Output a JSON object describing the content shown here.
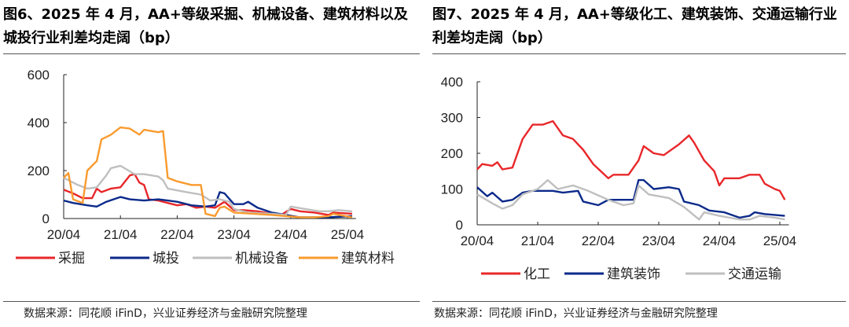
{
  "left": {
    "title": "图6、2025 年 4 月，AA+等级采掘、机械设备、建筑材料以及城投行业利差均走阔（bp）",
    "source": "数据来源：同花顺 iFinD，兴业证券经济与金融研究院整理"
  },
  "right": {
    "title": "图7、2025 年 4 月，AA+等级化工、建筑装饰、交通运输行业利差均走阔（bp）",
    "source": "数据来源：同花顺 iFinD，兴业证券经济与金融研究院整理"
  },
  "chart_data": [
    {
      "type": "line",
      "title": "图6、2025 年 4 月，AA+等级采掘、机械设备、建筑材料以及城投行业利差均走阔（bp）",
      "ylim": [
        0,
        600
      ],
      "yticks": [
        "0",
        "200",
        "400",
        "600"
      ],
      "xticks": [
        "20/04",
        "21/04",
        "22/04",
        "23/04",
        "24/04",
        "25/04"
      ],
      "legend": "bottom",
      "grid": false,
      "series": [
        {
          "name": "采掘",
          "color": "#e8272a",
          "points": [
            [
              "2020-04",
              120
            ],
            [
              "2020-06",
              105
            ],
            [
              "2020-08",
              85
            ],
            [
              "2020-10",
              85
            ],
            [
              "2020-11",
              125
            ],
            [
              "2020-12",
              110
            ],
            [
              "2021-02",
              125
            ],
            [
              "2021-04",
              130
            ],
            [
              "2021-06",
              180
            ],
            [
              "2021-07",
              185
            ],
            [
              "2021-08",
              150
            ],
            [
              "2021-09",
              140
            ],
            [
              "2021-10",
              80
            ],
            [
              "2021-12",
              75
            ],
            [
              "2022-02",
              65
            ],
            [
              "2022-04",
              55
            ],
            [
              "2022-06",
              60
            ],
            [
              "2022-08",
              45
            ],
            [
              "2022-10",
              50
            ],
            [
              "2022-12",
              45
            ],
            [
              "2023-02",
              70
            ],
            [
              "2023-04",
              35
            ],
            [
              "2023-06",
              35
            ],
            [
              "2023-09",
              30
            ],
            [
              "2023-12",
              20
            ],
            [
              "2024-02",
              15
            ],
            [
              "2024-04",
              40
            ],
            [
              "2024-06",
              30
            ],
            [
              "2024-09",
              25
            ],
            [
              "2024-12",
              15
            ],
            [
              "2025-01",
              25
            ],
            [
              "2025-05",
              20
            ]
          ]
        },
        {
          "name": "城投",
          "color": "#0b2a8a",
          "points": [
            [
              "2020-04",
              75
            ],
            [
              "2020-06",
              65
            ],
            [
              "2020-09",
              55
            ],
            [
              "2020-11",
              50
            ],
            [
              "2021-01",
              70
            ],
            [
              "2021-04",
              90
            ],
            [
              "2021-06",
              80
            ],
            [
              "2021-09",
              75
            ],
            [
              "2021-12",
              80
            ],
            [
              "2022-02",
              75
            ],
            [
              "2022-04",
              70
            ],
            [
              "2022-07",
              55
            ],
            [
              "2022-10",
              50
            ],
            [
              "2022-12",
              55
            ],
            [
              "2023-01",
              110
            ],
            [
              "2023-02",
              105
            ],
            [
              "2023-04",
              60
            ],
            [
              "2023-06",
              60
            ],
            [
              "2023-07",
              70
            ],
            [
              "2023-09",
              45
            ],
            [
              "2023-12",
              25
            ],
            [
              "2024-03",
              15
            ],
            [
              "2024-06",
              5
            ],
            [
              "2024-09",
              5
            ],
            [
              "2024-12",
              5
            ],
            [
              "2025-05",
              10
            ]
          ]
        },
        {
          "name": "机械设备",
          "color": "#bfbfbf",
          "points": [
            [
              "2020-04",
              170
            ],
            [
              "2020-07",
              140
            ],
            [
              "2020-09",
              125
            ],
            [
              "2020-11",
              130
            ],
            [
              "2021-01",
              180
            ],
            [
              "2021-02",
              210
            ],
            [
              "2021-04",
              220
            ],
            [
              "2021-07",
              185
            ],
            [
              "2021-09",
              185
            ],
            [
              "2021-12",
              175
            ],
            [
              "2022-01",
              160
            ],
            [
              "2022-02",
              125
            ],
            [
              "2022-06",
              110
            ],
            [
              "2022-09",
              100
            ],
            [
              "2022-11",
              75
            ],
            [
              "2023-01",
              80
            ],
            [
              "2023-03",
              70
            ],
            [
              "2023-04",
              40
            ],
            [
              "2023-07",
              25
            ],
            [
              "2023-12",
              20
            ],
            [
              "2024-03",
              15
            ],
            [
              "2024-04",
              50
            ],
            [
              "2024-07",
              40
            ],
            [
              "2024-10",
              30
            ],
            [
              "2024-12",
              30
            ],
            [
              "2025-02",
              35
            ],
            [
              "2025-05",
              30
            ]
          ]
        },
        {
          "name": "建筑材料",
          "color": "#f99b2e",
          "points": [
            [
              "2020-04",
              170
            ],
            [
              "2020-05",
              190
            ],
            [
              "2020-06",
              80
            ],
            [
              "2020-08",
              65
            ],
            [
              "2020-09",
              200
            ],
            [
              "2020-10",
              220
            ],
            [
              "2020-11",
              240
            ],
            [
              "2020-12",
              330
            ],
            [
              "2021-02",
              350
            ],
            [
              "2021-04",
              380
            ],
            [
              "2021-06",
              375
            ],
            [
              "2021-08",
              350
            ],
            [
              "2021-09",
              370
            ],
            [
              "2021-12",
              360
            ],
            [
              "2022-01",
              365
            ],
            [
              "2022-02",
              170
            ],
            [
              "2022-04",
              155
            ],
            [
              "2022-07",
              140
            ],
            [
              "2022-09",
              140
            ],
            [
              "2022-10",
              20
            ],
            [
              "2022-12",
              10
            ],
            [
              "2023-01",
              45
            ],
            [
              "2023-02",
              50
            ],
            [
              "2023-04",
              25
            ],
            [
              "2023-08",
              20
            ],
            [
              "2023-12",
              15
            ],
            [
              "2024-06",
              5
            ],
            [
              "2024-09",
              5
            ],
            [
              "2024-12",
              10
            ],
            [
              "2025-01",
              20
            ],
            [
              "2025-05",
              5
            ]
          ]
        }
      ]
    },
    {
      "type": "line",
      "title": "图7、2025 年 4 月，AA+等级化工、建筑装饰、交通运输行业利差均走阔（bp）",
      "ylim": [
        0,
        400
      ],
      "yticks": [
        "0",
        "100",
        "200",
        "300",
        "400"
      ],
      "xticks": [
        "20/04",
        "21/04",
        "22/04",
        "23/04",
        "24/04",
        "25/04"
      ],
      "legend": "bottom",
      "grid": false,
      "series": [
        {
          "name": "化工",
          "color": "#e8272a",
          "points": [
            [
              "2020-04",
              155
            ],
            [
              "2020-05",
              170
            ],
            [
              "2020-07",
              165
            ],
            [
              "2020-08",
              175
            ],
            [
              "2020-09",
              155
            ],
            [
              "2020-11",
              160
            ],
            [
              "2021-01",
              240
            ],
            [
              "2021-03",
              280
            ],
            [
              "2021-05",
              280
            ],
            [
              "2021-07",
              290
            ],
            [
              "2021-09",
              250
            ],
            [
              "2021-11",
              240
            ],
            [
              "2022-01",
              210
            ],
            [
              "2022-03",
              170
            ],
            [
              "2022-06",
              130
            ],
            [
              "2022-07",
              140
            ],
            [
              "2022-10",
              140
            ],
            [
              "2022-11",
              160
            ],
            [
              "2022-12",
              180
            ],
            [
              "2023-01",
              220
            ],
            [
              "2023-03",
              200
            ],
            [
              "2023-05",
              195
            ],
            [
              "2023-08",
              225
            ],
            [
              "2023-10",
              250
            ],
            [
              "2023-11",
              230
            ],
            [
              "2024-01",
              180
            ],
            [
              "2024-03",
              150
            ],
            [
              "2024-04",
              110
            ],
            [
              "2024-05",
              130
            ],
            [
              "2024-08",
              130
            ],
            [
              "2024-10",
              140
            ],
            [
              "2024-12",
              140
            ],
            [
              "2025-01",
              115
            ],
            [
              "2025-03",
              100
            ],
            [
              "2025-04",
              95
            ],
            [
              "2025-05",
              70
            ]
          ]
        },
        {
          "name": "建筑装饰",
          "color": "#0b2a8a",
          "points": [
            [
              "2020-04",
              105
            ],
            [
              "2020-06",
              80
            ],
            [
              "2020-07",
              90
            ],
            [
              "2020-09",
              65
            ],
            [
              "2020-11",
              70
            ],
            [
              "2021-01",
              90
            ],
            [
              "2021-03",
              95
            ],
            [
              "2021-05",
              95
            ],
            [
              "2021-07",
              95
            ],
            [
              "2021-09",
              90
            ],
            [
              "2021-12",
              95
            ],
            [
              "2022-01",
              65
            ],
            [
              "2022-04",
              55
            ],
            [
              "2022-06",
              70
            ],
            [
              "2022-09",
              70
            ],
            [
              "2022-11",
              70
            ],
            [
              "2022-12",
              125
            ],
            [
              "2023-01",
              125
            ],
            [
              "2023-03",
              100
            ],
            [
              "2023-06",
              105
            ],
            [
              "2023-08",
              100
            ],
            [
              "2023-09",
              65
            ],
            [
              "2023-12",
              55
            ],
            [
              "2024-02",
              40
            ],
            [
              "2024-05",
              35
            ],
            [
              "2024-08",
              20
            ],
            [
              "2024-10",
              25
            ],
            [
              "2024-11",
              35
            ],
            [
              "2025-01",
              30
            ],
            [
              "2025-05",
              25
            ]
          ]
        },
        {
          "name": "交通运输",
          "color": "#bfbfbf",
          "points": [
            [
              "2020-04",
              85
            ],
            [
              "2020-07",
              60
            ],
            [
              "2020-09",
              45
            ],
            [
              "2020-11",
              55
            ],
            [
              "2021-01",
              85
            ],
            [
              "2021-04",
              100
            ],
            [
              "2021-06",
              125
            ],
            [
              "2021-08",
              100
            ],
            [
              "2021-11",
              110
            ],
            [
              "2022-02",
              95
            ],
            [
              "2022-06",
              70
            ],
            [
              "2022-09",
              55
            ],
            [
              "2022-11",
              60
            ],
            [
              "2022-12",
              110
            ],
            [
              "2023-02",
              85
            ],
            [
              "2023-06",
              75
            ],
            [
              "2023-09",
              50
            ],
            [
              "2023-12",
              15
            ],
            [
              "2024-01",
              35
            ],
            [
              "2024-04",
              25
            ],
            [
              "2024-08",
              15
            ],
            [
              "2024-10",
              15
            ],
            [
              "2024-12",
              25
            ],
            [
              "2025-03",
              20
            ],
            [
              "2025-05",
              15
            ]
          ]
        }
      ]
    }
  ]
}
